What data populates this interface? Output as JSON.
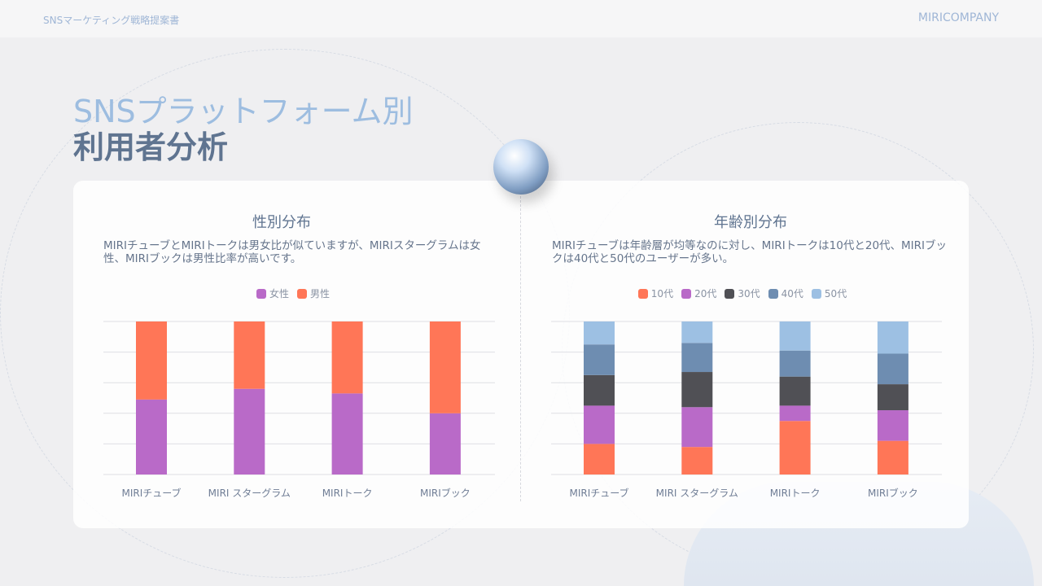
{
  "header": {
    "doc_title": "SNSマーケティング戦略提案書",
    "company": "MIRICOMPANY"
  },
  "title": {
    "line1": "SNSプラットフォーム別",
    "line2": "利用者分析"
  },
  "colors": {
    "female": "#b96ac8",
    "male": "#ff7657",
    "age10": "#ff7657",
    "age20": "#b96ac8",
    "age30": "#505055",
    "age40": "#6e8db1",
    "age50": "#9dc0e3"
  },
  "chart_data": [
    {
      "type": "bar",
      "stacked": true,
      "title": "性別分布",
      "description": "MIRIチューブとMIRIトークは男女比が似ていますが、MIRIスターグラムは女性、MIRIブックは男性比率が高いです。",
      "categories": [
        "MIRIチューブ",
        "MIRI スターグラム",
        "MIRIトーク",
        "MIRIブック"
      ],
      "series": [
        {
          "name": "女性",
          "values": [
            49,
            56,
            53,
            40
          ]
        },
        {
          "name": "男性",
          "values": [
            51,
            44,
            47,
            60
          ]
        }
      ],
      "ylim": [
        0,
        100
      ],
      "grid": true,
      "legend": "top"
    },
    {
      "type": "bar",
      "stacked": true,
      "title": "年齢別分布",
      "description": "MIRIチューブは年齢層が均等なのに対し、MIRIトークは10代と20代、MIRIブックは40代と50代のユーザーが多い。",
      "categories": [
        "MIRIチューブ",
        "MIRI スターグラム",
        "MIRIトーク",
        "MIRIブック"
      ],
      "series": [
        {
          "name": "10代",
          "values": [
            20,
            18,
            35,
            22
          ]
        },
        {
          "name": "20代",
          "values": [
            25,
            26,
            10,
            20
          ]
        },
        {
          "name": "30代",
          "values": [
            20,
            23,
            19,
            17
          ]
        },
        {
          "name": "40代",
          "values": [
            20,
            19,
            17,
            20
          ]
        },
        {
          "name": "50代",
          "values": [
            15,
            14,
            19,
            21
          ]
        }
      ],
      "ylim": [
        0,
        100
      ],
      "grid": true,
      "legend": "top"
    }
  ]
}
